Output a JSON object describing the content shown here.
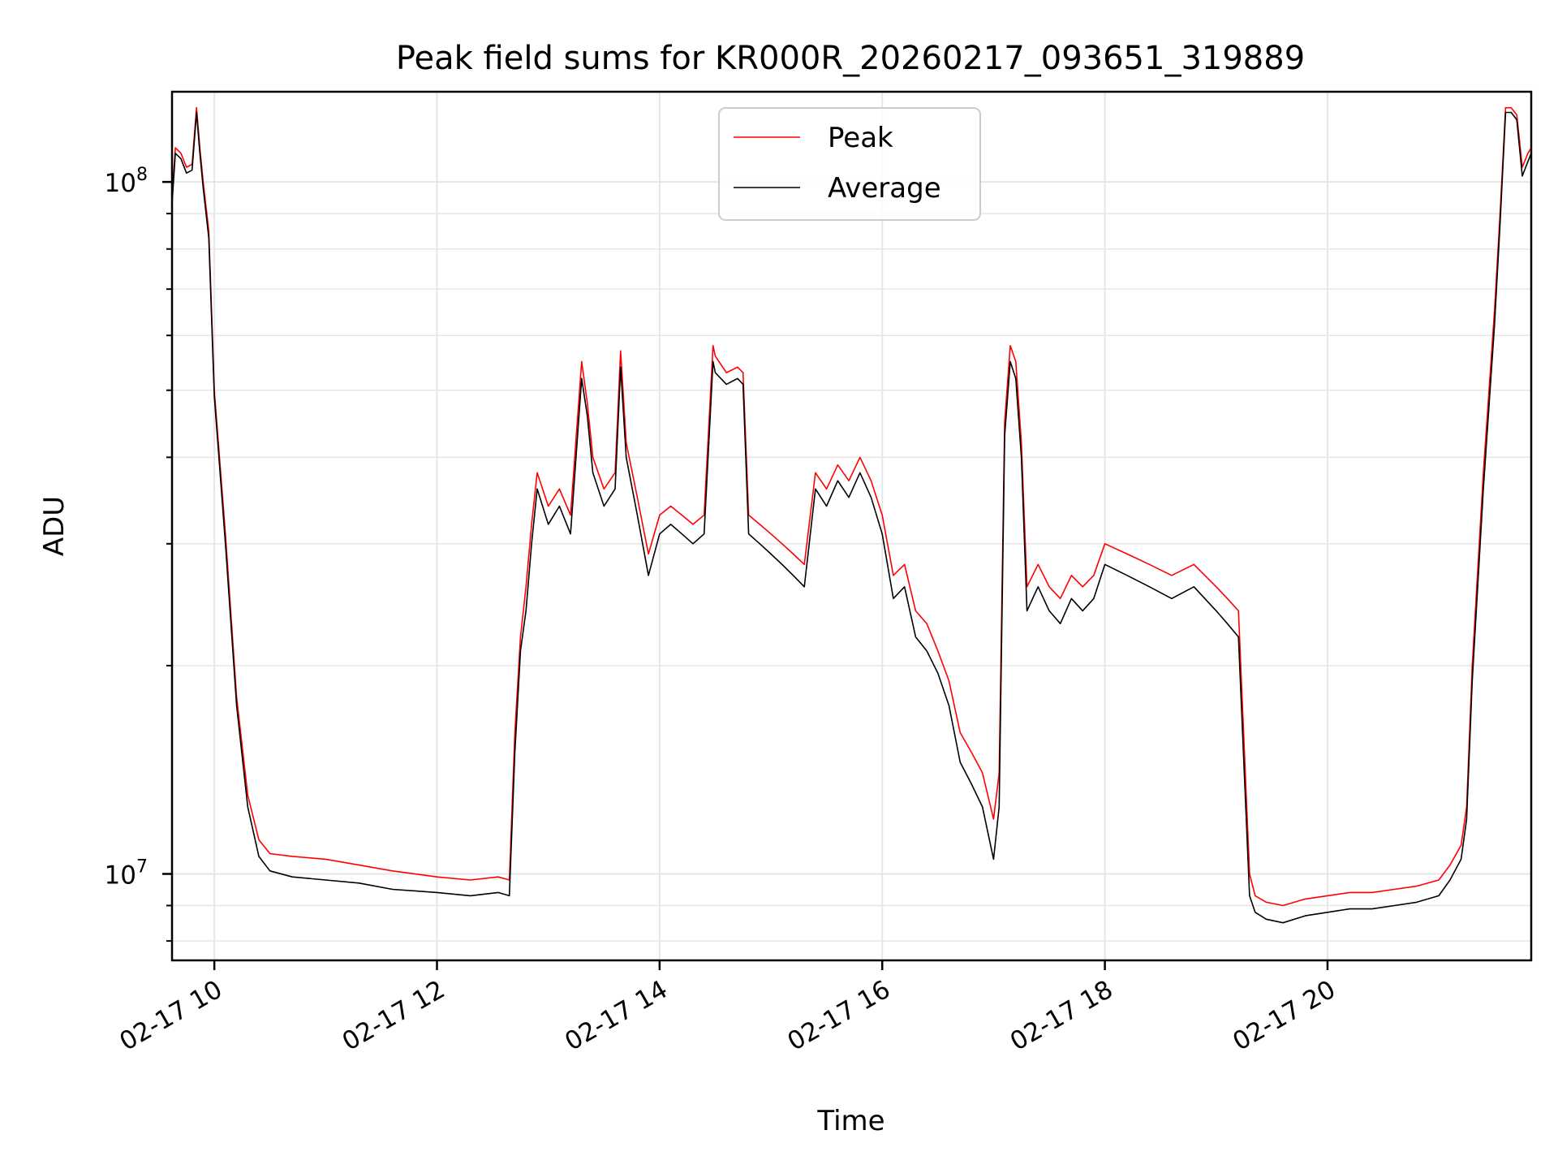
{
  "chart_data": {
    "type": "line",
    "title": "Peak field sums for KR000R_20260217_093651_319889",
    "xlabel": "Time",
    "ylabel": "ADU",
    "yscale": "log",
    "ylim": [
      7500000,
      135000000
    ],
    "xlim_hours": [
      9.62,
      21.83
    ],
    "grid": true,
    "legend_position": "upper center",
    "x_ticks": [
      {
        "hour": 10,
        "label": "02-17 10"
      },
      {
        "hour": 12,
        "label": "02-17 12"
      },
      {
        "hour": 14,
        "label": "02-17 14"
      },
      {
        "hour": 16,
        "label": "02-17 16"
      },
      {
        "hour": 18,
        "label": "02-17 18"
      },
      {
        "hour": 20,
        "label": "02-17 20"
      }
    ],
    "y_ticks": [
      {
        "value": 10000000,
        "label_base": "10",
        "label_exp": "7"
      },
      {
        "value": 100000000,
        "label_base": "10",
        "label_exp": "8"
      }
    ],
    "series": [
      {
        "name": "Peak",
        "color": "#ff0000",
        "x": [
          9.62,
          9.65,
          9.7,
          9.75,
          9.8,
          9.84,
          9.87,
          9.9,
          9.95,
          10.0,
          10.1,
          10.2,
          10.3,
          10.4,
          10.5,
          10.7,
          11.0,
          11.3,
          11.6,
          12.0,
          12.3,
          12.55,
          12.65,
          12.7,
          12.75,
          12.8,
          12.85,
          12.9,
          13.0,
          13.1,
          13.2,
          13.3,
          13.35,
          13.4,
          13.5,
          13.6,
          13.65,
          13.7,
          13.8,
          13.9,
          14.0,
          14.1,
          14.2,
          14.3,
          14.4,
          14.48,
          14.5,
          14.6,
          14.7,
          14.75,
          14.8,
          14.9,
          15.0,
          15.1,
          15.2,
          15.3,
          15.4,
          15.5,
          15.6,
          15.7,
          15.8,
          15.9,
          16.0,
          16.1,
          16.2,
          16.3,
          16.4,
          16.5,
          16.6,
          16.7,
          16.8,
          16.9,
          17.0,
          17.05,
          17.1,
          17.15,
          17.2,
          17.25,
          17.3,
          17.4,
          17.5,
          17.6,
          17.7,
          17.8,
          17.9,
          18.0,
          18.2,
          18.4,
          18.6,
          18.8,
          19.0,
          19.1,
          19.2,
          19.3,
          19.35,
          19.45,
          19.6,
          19.8,
          20.0,
          20.2,
          20.4,
          20.6,
          20.8,
          21.0,
          21.1,
          21.2,
          21.25,
          21.3,
          21.4,
          21.5,
          21.55,
          21.6,
          21.65,
          21.7,
          21.75,
          21.8,
          21.83
        ],
        "values": [
          95000000,
          112000000,
          110000000,
          105000000,
          106000000,
          128000000,
          112000000,
          100000000,
          85000000,
          50000000,
          31000000,
          18000000,
          13000000,
          11200000,
          10700000,
          10600000,
          10500000,
          10300000,
          10100000,
          9900000,
          9800000,
          9900000,
          9800000,
          16000000,
          22000000,
          26000000,
          32000000,
          38000000,
          34000000,
          36000000,
          33000000,
          55000000,
          48000000,
          40000000,
          36000000,
          38000000,
          57000000,
          42000000,
          35000000,
          29000000,
          33000000,
          34000000,
          33000000,
          32000000,
          33000000,
          58000000,
          56000000,
          53000000,
          54000000,
          53000000,
          33000000,
          32000000,
          31000000,
          30000000,
          29000000,
          28000000,
          38000000,
          36000000,
          39000000,
          37000000,
          40000000,
          37000000,
          33000000,
          27000000,
          28000000,
          24000000,
          23000000,
          21000000,
          19000000,
          16000000,
          15000000,
          14000000,
          12000000,
          14000000,
          45000000,
          58000000,
          55000000,
          42000000,
          26000000,
          28000000,
          26000000,
          25000000,
          27000000,
          26000000,
          27000000,
          30000000,
          29000000,
          28000000,
          27000000,
          28000000,
          26000000,
          25000000,
          24000000,
          10000000,
          9300000,
          9100000,
          9000000,
          9200000,
          9300000,
          9400000,
          9400000,
          9500000,
          9600000,
          9800000,
          10300000,
          11000000,
          12500000,
          20000000,
          38000000,
          65000000,
          90000000,
          128000000,
          128000000,
          125000000,
          105000000,
          110000000,
          112000000
        ]
      },
      {
        "name": "Average",
        "color": "#000000",
        "x": [
          9.62,
          9.65,
          9.7,
          9.75,
          9.8,
          9.84,
          9.87,
          9.9,
          9.95,
          10.0,
          10.1,
          10.2,
          10.3,
          10.4,
          10.5,
          10.7,
          11.0,
          11.3,
          11.6,
          12.0,
          12.3,
          12.55,
          12.65,
          12.7,
          12.75,
          12.8,
          12.85,
          12.9,
          13.0,
          13.1,
          13.2,
          13.3,
          13.35,
          13.4,
          13.5,
          13.6,
          13.65,
          13.7,
          13.8,
          13.9,
          14.0,
          14.1,
          14.2,
          14.3,
          14.4,
          14.48,
          14.5,
          14.6,
          14.7,
          14.75,
          14.8,
          14.9,
          15.0,
          15.1,
          15.2,
          15.3,
          15.4,
          15.5,
          15.6,
          15.7,
          15.8,
          15.9,
          16.0,
          16.1,
          16.2,
          16.3,
          16.4,
          16.5,
          16.6,
          16.7,
          16.8,
          16.9,
          17.0,
          17.05,
          17.1,
          17.15,
          17.2,
          17.25,
          17.3,
          17.4,
          17.5,
          17.6,
          17.7,
          17.8,
          17.9,
          18.0,
          18.2,
          18.4,
          18.6,
          18.8,
          19.0,
          19.1,
          19.2,
          19.3,
          19.35,
          19.45,
          19.6,
          19.8,
          20.0,
          20.2,
          20.4,
          20.6,
          20.8,
          21.0,
          21.1,
          21.2,
          21.25,
          21.3,
          21.4,
          21.5,
          21.55,
          21.6,
          21.65,
          21.7,
          21.75,
          21.8,
          21.83
        ],
        "values": [
          93000000,
          110000000,
          108000000,
          103000000,
          104000000,
          126000000,
          110000000,
          98000000,
          83000000,
          49000000,
          30000000,
          17500000,
          12500000,
          10600000,
          10100000,
          9900000,
          9800000,
          9700000,
          9500000,
          9400000,
          9300000,
          9400000,
          9300000,
          15000000,
          21000000,
          24000000,
          30000000,
          36000000,
          32000000,
          34000000,
          31000000,
          52000000,
          46000000,
          38000000,
          34000000,
          36000000,
          54000000,
          40000000,
          33000000,
          27000000,
          31000000,
          32000000,
          31000000,
          30000000,
          31000000,
          55000000,
          53000000,
          51000000,
          52000000,
          51000000,
          31000000,
          30000000,
          29000000,
          28000000,
          27000000,
          26000000,
          36000000,
          34000000,
          37000000,
          35000000,
          38000000,
          35000000,
          31000000,
          25000000,
          26000000,
          22000000,
          21000000,
          19500000,
          17500000,
          14500000,
          13500000,
          12500000,
          10500000,
          12500000,
          43000000,
          55000000,
          52000000,
          40000000,
          24000000,
          26000000,
          24000000,
          23000000,
          25000000,
          24000000,
          25000000,
          28000000,
          27000000,
          26000000,
          25000000,
          26000000,
          24000000,
          23000000,
          22000000,
          9300000,
          8800000,
          8600000,
          8500000,
          8700000,
          8800000,
          8900000,
          8900000,
          9000000,
          9100000,
          9300000,
          9800000,
          10500000,
          12000000,
          19000000,
          36000000,
          62000000,
          87000000,
          126000000,
          126000000,
          123000000,
          102000000,
          107000000,
          110000000
        ]
      }
    ]
  }
}
